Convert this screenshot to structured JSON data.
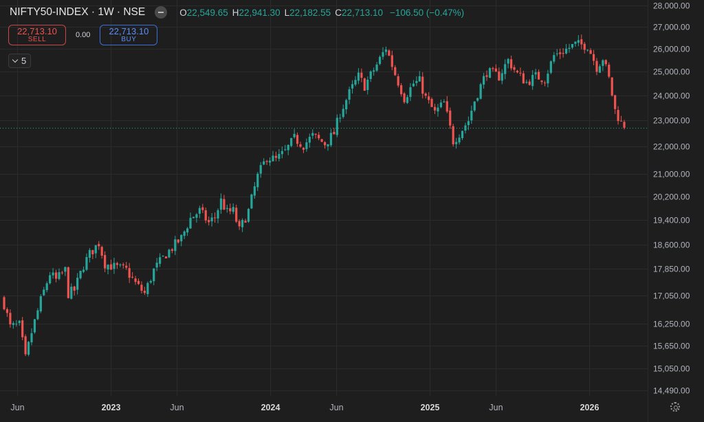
{
  "header": {
    "symbol": "NIFTY50-INDEX · 1W · NSE",
    "ohlc": {
      "o_label": "O",
      "o": "22,549.65",
      "h_label": "H",
      "h": "22,941.30",
      "l_label": "L",
      "l": "22,182.55",
      "c_label": "C",
      "c": "22,713.10",
      "change": "−106.50 (−0.47%)"
    }
  },
  "trade": {
    "sell_price": "22,713.10",
    "sell_label": "SELL",
    "spread": "0.00",
    "buy_price": "22,713.10",
    "buy_label": "BUY"
  },
  "indicator_toggle": {
    "count": "5"
  },
  "colors": {
    "background": "#1e1e1e",
    "up": "#26a69a",
    "down": "#ef5350",
    "grid": "#2b2b2b",
    "axis_text": "#b2b5be",
    "price_line": "#26a69a"
  },
  "chart_data": {
    "type": "candlestick",
    "interval": "1W",
    "y_scale": "log",
    "y_ticks": [
      28000,
      27000,
      26000,
      25000,
      24000,
      23000,
      22000,
      21000,
      20200,
      19400,
      18600,
      17850,
      17050,
      16250,
      15650,
      15050,
      14490
    ],
    "y_tick_labels": [
      "28,000.00",
      "27,000.00",
      "26,000.00",
      "25,000.00",
      "24,000.00",
      "23,000.00",
      "22,000.00",
      "21,000.00",
      "20,200.00",
      "19,400.00",
      "18,600.00",
      "17,850.00",
      "17,050.00",
      "16,250.00",
      "15,650.00",
      "15,050.00",
      "14,490.00"
    ],
    "x_ticks": [
      {
        "label": "Jun",
        "date": "2022-06-01",
        "bold": false
      },
      {
        "label": "2023",
        "date": "2023-01-01",
        "bold": true
      },
      {
        "label": "Jun",
        "date": "2023-06-01",
        "bold": false
      },
      {
        "label": "2024",
        "date": "2024-01-01",
        "bold": true
      },
      {
        "label": "Jun",
        "date": "2024-06-01",
        "bold": false
      },
      {
        "label": "2025",
        "date": "2025-01-01",
        "bold": true
      },
      {
        "label": "Jun",
        "date": "2025-06-01",
        "bold": false
      },
      {
        "label": "2026",
        "date": "2026-01-01",
        "bold": true
      }
    ],
    "x_range": [
      "2022-05-02",
      "2026-03-23"
    ],
    "last_price": 22713.1,
    "grid": true,
    "anchors": [
      [
        "2022-05-02",
        16800
      ],
      [
        "2022-05-16",
        16150
      ],
      [
        "2022-06-06",
        16200
      ],
      [
        "2022-06-20",
        15300
      ],
      [
        "2022-07-04",
        16000
      ],
      [
        "2022-07-25",
        16900
      ],
      [
        "2022-08-15",
        17700
      ],
      [
        "2022-08-29",
        17500
      ],
      [
        "2022-09-19",
        17800
      ],
      [
        "2022-09-26",
        17100
      ],
      [
        "2022-10-10",
        17200
      ],
      [
        "2022-10-31",
        17950
      ],
      [
        "2022-11-14",
        18300
      ],
      [
        "2022-12-05",
        18650
      ],
      [
        "2022-12-19",
        18000
      ],
      [
        "2023-01-09",
        17900
      ],
      [
        "2023-02-06",
        17800
      ],
      [
        "2023-02-27",
        17400
      ],
      [
        "2023-03-20",
        17100
      ],
      [
        "2023-04-10",
        17800
      ],
      [
        "2023-05-08",
        18300
      ],
      [
        "2023-06-12",
        18800
      ],
      [
        "2023-07-03",
        19450
      ],
      [
        "2023-07-24",
        19700
      ],
      [
        "2023-08-14",
        19300
      ],
      [
        "2023-08-28",
        19500
      ],
      [
        "2023-09-11",
        20050
      ],
      [
        "2023-09-25",
        19650
      ],
      [
        "2023-10-09",
        19700
      ],
      [
        "2023-10-23",
        19050
      ],
      [
        "2023-11-13",
        19700
      ],
      [
        "2023-12-04",
        20900
      ],
      [
        "2023-12-25",
        21600
      ],
      [
        "2024-01-15",
        21500
      ],
      [
        "2024-02-05",
        21800
      ],
      [
        "2024-02-26",
        22300
      ],
      [
        "2024-03-18",
        22050
      ],
      [
        "2024-04-08",
        22400
      ],
      [
        "2024-05-06",
        22100
      ],
      [
        "2024-05-27",
        22500
      ],
      [
        "2024-06-10",
        23300
      ],
      [
        "2024-07-01",
        24100
      ],
      [
        "2024-07-22",
        24800
      ],
      [
        "2024-08-05",
        24400
      ],
      [
        "2024-09-02",
        25300
      ],
      [
        "2024-09-23",
        26050
      ],
      [
        "2024-10-14",
        24900
      ],
      [
        "2024-11-04",
        23900
      ],
      [
        "2024-11-25",
        24500
      ],
      [
        "2024-12-09",
        24600
      ],
      [
        "2024-12-23",
        23900
      ],
      [
        "2025-01-13",
        23300
      ],
      [
        "2025-02-03",
        23700
      ],
      [
        "2025-02-24",
        22200
      ],
      [
        "2025-03-10",
        22500
      ],
      [
        "2025-03-31",
        23000
      ],
      [
        "2025-04-14",
        23800
      ],
      [
        "2025-05-12",
        25000
      ],
      [
        "2025-06-09",
        24800
      ],
      [
        "2025-06-30",
        25500
      ],
      [
        "2025-07-21",
        24900
      ],
      [
        "2025-08-11",
        24550
      ],
      [
        "2025-09-01",
        24800
      ],
      [
        "2025-09-22",
        24700
      ],
      [
        "2025-10-13",
        25700
      ],
      [
        "2025-11-03",
        25900
      ],
      [
        "2025-12-01",
        26200
      ],
      [
        "2025-12-29",
        26150
      ],
      [
        "2026-01-19",
        25200
      ],
      [
        "2026-02-02",
        25600
      ],
      [
        "2026-02-16",
        24700
      ],
      [
        "2026-03-02",
        23400
      ],
      [
        "2026-03-16",
        22900
      ],
      [
        "2026-03-23",
        22713
      ]
    ]
  }
}
